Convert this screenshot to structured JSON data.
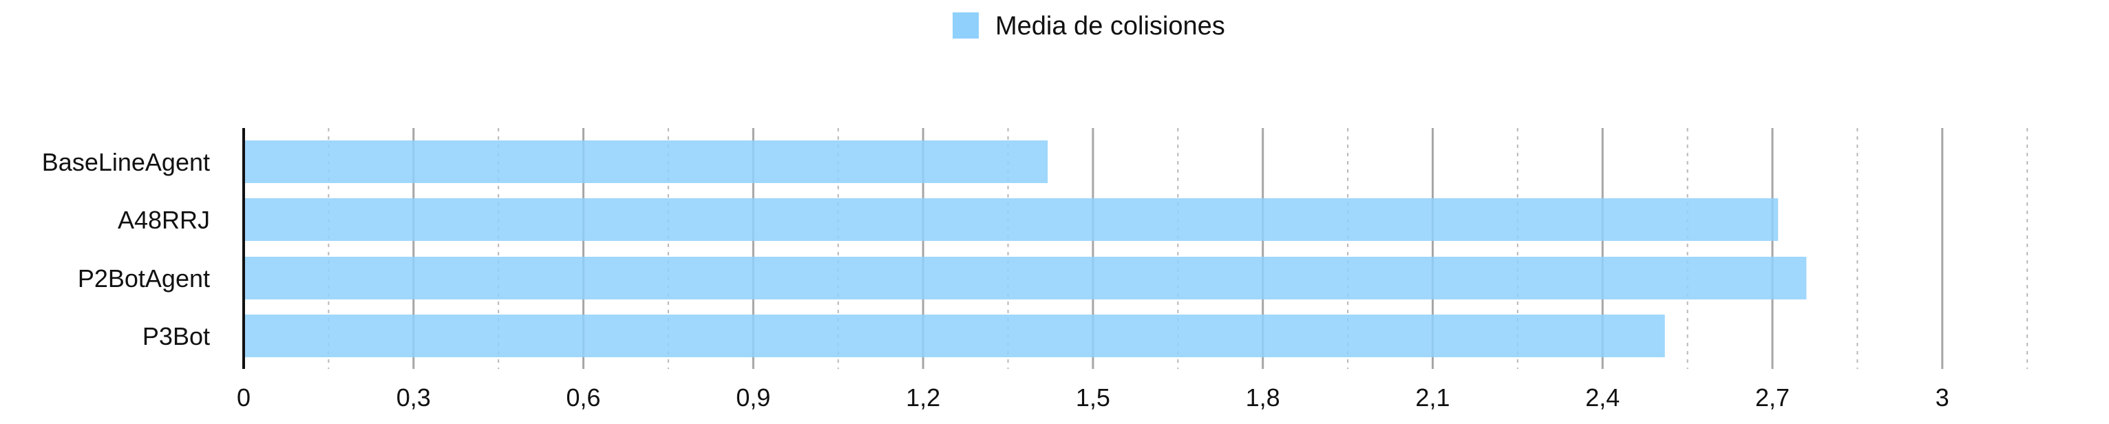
{
  "chart_data": {
    "type": "bar",
    "orientation": "horizontal",
    "categories": [
      "BaseLineAgent",
      "A48RRJ",
      "P2BotAgent",
      "P3Bot"
    ],
    "series": [
      {
        "name": "Media de colisiones",
        "values": [
          1.42,
          2.71,
          2.76,
          2.51
        ],
        "color": "#8fd0fc"
      }
    ],
    "xlim": [
      0,
      3.6
    ],
    "major_ticks": [
      "0",
      "0,3",
      "0,6",
      "0,9",
      "1,2",
      "1,5",
      "1,8",
      "2,1",
      "2,4",
      "2,7",
      "3"
    ],
    "grid": "vertical major solid, minor dashed",
    "legend_position": "top-center"
  }
}
